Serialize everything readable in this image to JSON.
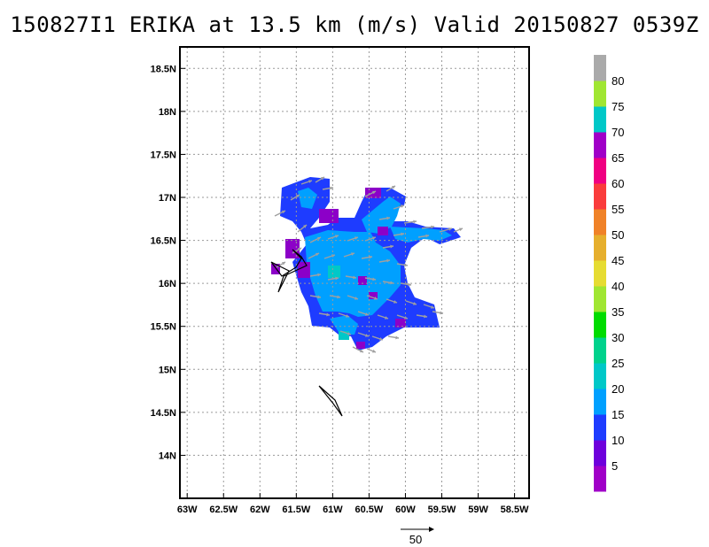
{
  "title": "150827I1 ERIKA at 13.5 km (m/s) Valid 20150827 0539Z",
  "chart_data": {
    "type": "heatmap",
    "xlabel": "",
    "ylabel": "",
    "xlim": [
      -63.1,
      -58.3
    ],
    "ylim": [
      13.5,
      18.75
    ],
    "x_ticks": [
      "63W",
      "62.5W",
      "62W",
      "61.5W",
      "61W",
      "60.5W",
      "60W",
      "59.5W",
      "59W",
      "58.5W"
    ],
    "x_tick_values": [
      -63,
      -62.5,
      -62,
      -61.5,
      -61,
      -60.5,
      -60,
      -59.5,
      -59,
      -58.5
    ],
    "y_ticks": [
      "14N",
      "14.5N",
      "15N",
      "15.5N",
      "16N",
      "16.5N",
      "17N",
      "17.5N",
      "18N",
      "18.5N"
    ],
    "y_tick_values": [
      14,
      14.5,
      15,
      15.5,
      16,
      16.5,
      17,
      17.5,
      18,
      18.5
    ],
    "grid": true,
    "colorbar": {
      "labels": [
        "5",
        "10",
        "15",
        "20",
        "25",
        "30",
        "35",
        "40",
        "45",
        "50",
        "55",
        "60",
        "65",
        "70",
        "75",
        "80"
      ],
      "colors": [
        "#a000c8",
        "#6e00dc",
        "#1e3cff",
        "#00a0ff",
        "#00c8c8",
        "#00d28c",
        "#00dc00",
        "#a0e632",
        "#e6dc32",
        "#e6af2d",
        "#f08228",
        "#fa3c3c",
        "#f00082",
        "#a000c8",
        "#00c8c8",
        "#a0e632",
        "#aaaaaa"
      ]
    },
    "wind_regions": [
      {
        "lon_min": -61.55,
        "lon_max": -60.2,
        "lat_min": 15.7,
        "lat_max": 16.5,
        "speed_ms": 15
      },
      {
        "lon_min": -61.05,
        "lon_max": -60.85,
        "lat_min": 16.0,
        "lat_max": 16.2,
        "speed_ms": 20
      },
      {
        "lon_min": -61.0,
        "lon_max": -60.5,
        "lat_min": 15.4,
        "lat_max": 15.6,
        "speed_ms": 15
      },
      {
        "lon_min": -60.3,
        "lon_max": -59.4,
        "lat_min": 16.45,
        "lat_max": 16.6,
        "speed_ms": 15
      }
    ],
    "reference_vector": {
      "label": "50"
    }
  }
}
